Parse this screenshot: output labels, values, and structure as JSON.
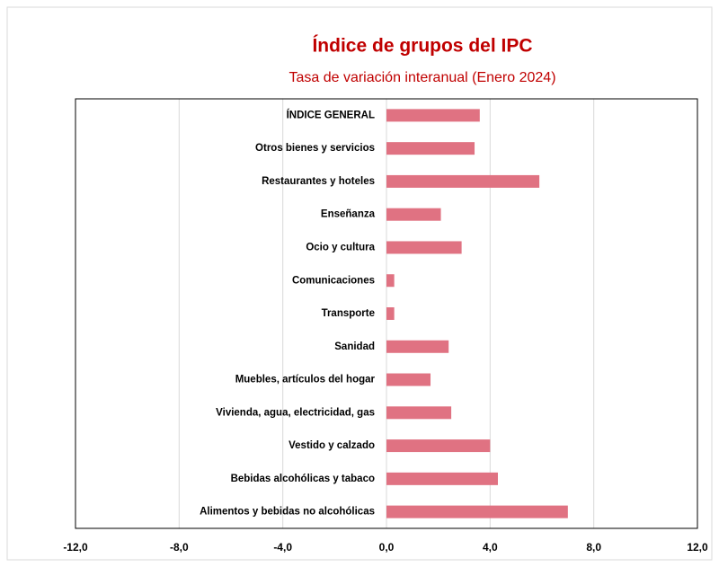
{
  "chart_data": {
    "type": "barh",
    "title": "Índice de grupos del IPC",
    "subtitle": "Tasa de variación interanual (Enero 2024)",
    "categories": [
      "ÍNDICE GENERAL",
      "Otros bienes y servicios",
      "Restaurantes y hoteles",
      "Enseñanza",
      "Ocio y cultura",
      "Comunicaciones",
      "Transporte",
      "Sanidad",
      "Muebles, artículos del hogar",
      "Vivienda, agua, electricidad, gas",
      "Vestido y calzado",
      "Bebidas alcohólicas y tabaco",
      "Alimentos y bebidas no alcohólicas"
    ],
    "values": [
      3.6,
      3.4,
      5.9,
      2.1,
      2.9,
      0.3,
      0.3,
      2.4,
      1.7,
      2.5,
      4.0,
      4.3,
      7.0
    ],
    "color": "#e07282",
    "xlim": [
      -12,
      12
    ],
    "xticks": [
      {
        "value": -12,
        "label": "-12,0"
      },
      {
        "value": -8,
        "label": "-8,0"
      },
      {
        "value": -4,
        "label": "-4,0"
      },
      {
        "value": 0,
        "label": "0,0"
      },
      {
        "value": 4,
        "label": "4,0"
      },
      {
        "value": 8,
        "label": "8,0"
      },
      {
        "value": 12,
        "label": "12,0"
      }
    ],
    "grid": true
  }
}
